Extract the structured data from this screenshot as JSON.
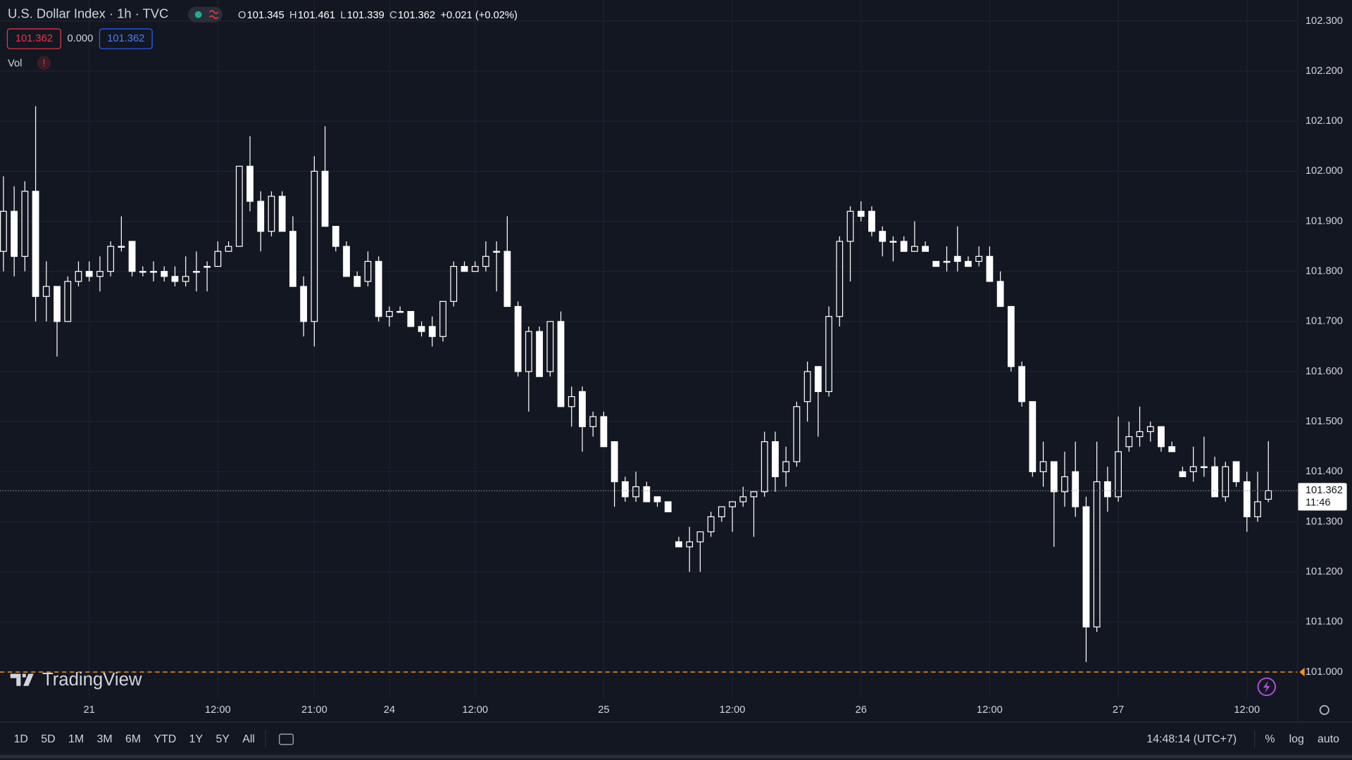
{
  "chart_data": {
    "type": "candlestick",
    "title": "U.S. Dollar Index · 1h · TVC",
    "ohlc_legend": [
      {
        "key": "O",
        "value": "101.345"
      },
      {
        "key": "H",
        "value": "101.461"
      },
      {
        "key": "L",
        "value": "101.339"
      },
      {
        "key": "C",
        "value": "101.362"
      }
    ],
    "change": "+0.021 (+0.02%)",
    "bid": "101.362",
    "spread": "0.000",
    "ask": "101.362",
    "indicator": "Vol",
    "indicator_alert": "!",
    "logo": "TradingView",
    "candle_color": "#ffffff",
    "last_price_label": "101.362",
    "countdown": "11:46",
    "alert_line": {
      "value": 101.0,
      "color": "#f7931a"
    },
    "open": [
      101.84,
      101.92,
      101.83,
      101.96,
      101.75,
      101.77,
      101.7,
      101.78,
      101.8,
      101.79,
      101.8,
      101.85,
      101.86,
      101.8,
      101.8,
      101.8,
      101.79,
      101.78,
      101.8,
      101.81,
      101.81,
      101.84,
      101.85,
      102.01,
      101.94,
      101.88,
      101.95,
      101.88,
      101.77,
      101.7,
      102.0,
      101.89,
      101.85,
      101.79,
      101.78,
      101.82,
      101.71,
      101.72,
      101.72,
      101.69,
      101.69,
      101.67,
      101.74,
      101.81,
      101.8,
      101.81,
      101.84,
      101.84,
      101.73,
      101.6,
      101.68,
      101.6,
      101.7,
      101.53,
      101.56,
      101.49,
      101.51,
      101.46,
      101.38,
      101.35,
      101.37,
      101.35,
      101.34,
      101.26,
      101.25,
      101.26,
      101.28,
      101.31,
      101.33,
      101.34,
      101.35,
      101.36,
      101.46,
      101.4,
      101.42,
      101.54,
      101.61,
      101.56,
      101.71,
      101.86,
      101.92,
      101.92,
      101.88,
      101.86,
      101.86,
      101.84,
      101.85,
      101.82,
      101.82,
      101.83,
      101.82,
      101.82,
      101.83,
      101.78,
      101.73,
      101.61,
      101.54,
      101.4,
      101.42,
      101.36,
      101.4,
      101.33,
      101.09,
      101.38,
      101.35,
      101.45,
      101.47,
      101.48,
      101.49,
      101.45,
      101.4,
      101.4,
      101.41,
      101.41,
      101.35,
      101.42,
      101.38,
      101.31,
      101.345
    ],
    "high": [
      101.99,
      101.97,
      101.98,
      102.13,
      101.82,
      101.77,
      101.79,
      101.82,
      101.82,
      101.83,
      101.86,
      101.91,
      101.86,
      101.81,
      101.82,
      101.81,
      101.81,
      101.83,
      101.84,
      101.82,
      101.86,
      101.86,
      102.01,
      102.07,
      101.96,
      101.96,
      101.96,
      101.91,
      101.79,
      102.03,
      102.09,
      101.89,
      101.86,
      101.8,
      101.84,
      101.83,
      101.73,
      101.73,
      101.72,
      101.7,
      101.71,
      101.74,
      101.82,
      101.82,
      101.82,
      101.86,
      101.86,
      101.91,
      101.74,
      101.69,
      101.69,
      101.7,
      101.72,
      101.57,
      101.57,
      101.52,
      101.52,
      101.46,
      101.39,
      101.4,
      101.38,
      101.35,
      101.34,
      101.27,
      101.29,
      101.28,
      101.32,
      101.33,
      101.34,
      101.37,
      101.36,
      101.48,
      101.48,
      101.45,
      101.54,
      101.62,
      101.61,
      101.73,
      101.87,
      101.93,
      101.94,
      101.93,
      101.89,
      101.87,
      101.87,
      101.9,
      101.86,
      101.82,
      101.85,
      101.89,
      101.83,
      101.85,
      101.85,
      101.8,
      101.73,
      101.62,
      101.54,
      101.46,
      101.42,
      101.44,
      101.46,
      101.35,
      101.46,
      101.41,
      101.51,
      101.5,
      101.53,
      101.5,
      101.49,
      101.46,
      101.41,
      101.45,
      101.47,
      101.43,
      101.42,
      101.42,
      101.4,
      101.4,
      101.461
    ],
    "low": [
      101.8,
      101.79,
      101.8,
      101.7,
      101.7,
      101.63,
      101.7,
      101.77,
      101.78,
      101.76,
      101.79,
      101.84,
      101.79,
      101.79,
      101.78,
      101.78,
      101.77,
      101.77,
      101.76,
      101.76,
      101.81,
      101.84,
      101.85,
      101.92,
      101.84,
      101.87,
      101.88,
      101.77,
      101.67,
      101.65,
      101.89,
      101.84,
      101.79,
      101.77,
      101.77,
      101.7,
      101.69,
      101.72,
      101.69,
      101.67,
      101.65,
      101.66,
      101.73,
      101.8,
      101.8,
      101.8,
      101.76,
      101.73,
      101.59,
      101.52,
      101.59,
      101.59,
      101.53,
      101.49,
      101.44,
      101.47,
      101.45,
      101.33,
      101.34,
      101.34,
      101.34,
      101.33,
      101.32,
      101.25,
      101.2,
      101.2,
      101.27,
      101.3,
      101.28,
      101.33,
      101.27,
      101.35,
      101.36,
      101.37,
      101.41,
      101.5,
      101.47,
      101.55,
      101.69,
      101.78,
      101.9,
      101.87,
      101.83,
      101.82,
      101.84,
      101.84,
      101.84,
      101.81,
      101.8,
      101.8,
      101.81,
      101.81,
      101.78,
      101.73,
      101.6,
      101.53,
      101.39,
      101.37,
      101.25,
      101.33,
      101.31,
      101.02,
      101.08,
      101.32,
      101.34,
      101.44,
      101.45,
      101.46,
      101.44,
      101.44,
      101.39,
      101.38,
      101.39,
      101.35,
      101.34,
      101.37,
      101.28,
      101.3,
      101.339
    ],
    "close": [
      101.92,
      101.83,
      101.96,
      101.75,
      101.77,
      101.7,
      101.78,
      101.8,
      101.79,
      101.8,
      101.85,
      101.85,
      101.8,
      101.8,
      101.8,
      101.79,
      101.78,
      101.79,
      101.8,
      101.81,
      101.84,
      101.85,
      102.01,
      101.94,
      101.88,
      101.95,
      101.88,
      101.77,
      101.7,
      102.0,
      101.89,
      101.85,
      101.79,
      101.77,
      101.82,
      101.71,
      101.72,
      101.72,
      101.69,
      101.68,
      101.67,
      101.74,
      101.81,
      101.8,
      101.81,
      101.83,
      101.84,
      101.73,
      101.6,
      101.68,
      101.59,
      101.7,
      101.53,
      101.55,
      101.49,
      101.51,
      101.45,
      101.38,
      101.35,
      101.37,
      101.34,
      101.34,
      101.32,
      101.25,
      101.26,
      101.28,
      101.31,
      101.33,
      101.34,
      101.35,
      101.36,
      101.46,
      101.39,
      101.42,
      101.53,
      101.6,
      101.56,
      101.71,
      101.86,
      101.92,
      101.91,
      101.88,
      101.86,
      101.86,
      101.84,
      101.85,
      101.84,
      101.81,
      101.82,
      101.82,
      101.81,
      101.83,
      101.78,
      101.73,
      101.61,
      101.54,
      101.4,
      101.42,
      101.36,
      101.39,
      101.33,
      101.09,
      101.38,
      101.35,
      101.44,
      101.47,
      101.48,
      101.49,
      101.45,
      101.44,
      101.39,
      101.41,
      101.41,
      101.35,
      101.41,
      101.38,
      101.31,
      101.34,
      101.362
    ],
    "ylim": [
      100.9,
      102.342
    ],
    "yticks": [
      {
        "value": 102.3,
        "label": "102.300"
      },
      {
        "value": 102.2,
        "label": "102.200"
      },
      {
        "value": 102.1,
        "label": "102.100"
      },
      {
        "value": 102.0,
        "label": "102.000"
      },
      {
        "value": 101.9,
        "label": "101.900"
      },
      {
        "value": 101.8,
        "label": "101.800"
      },
      {
        "value": 101.7,
        "label": "101.700"
      },
      {
        "value": 101.6,
        "label": "101.600"
      },
      {
        "value": 101.5,
        "label": "101.500"
      },
      {
        "value": 101.4,
        "label": "101.400"
      },
      {
        "value": 101.3,
        "label": "101.300"
      },
      {
        "value": 101.2,
        "label": "101.200"
      },
      {
        "value": 101.1,
        "label": "101.100"
      },
      {
        "value": 101.0,
        "label": "101.000"
      }
    ],
    "xticks": [
      {
        "value": 8,
        "label": "21"
      },
      {
        "value": 20,
        "label": "12:00"
      },
      {
        "value": 29,
        "label": "21:00"
      },
      {
        "value": 36,
        "label": "24"
      },
      {
        "value": 44,
        "label": "12:00"
      },
      {
        "value": 56,
        "label": "25"
      },
      {
        "value": 68,
        "label": "12:00"
      },
      {
        "value": 80,
        "label": "26"
      },
      {
        "value": 92,
        "label": "12:00"
      },
      {
        "value": 104,
        "label": "27"
      },
      {
        "value": 116,
        "label": "12:00"
      }
    ],
    "grid": true,
    "ranges": [
      "1D",
      "5D",
      "1M",
      "3M",
      "6M",
      "YTD",
      "1Y",
      "5Y",
      "All"
    ],
    "clock": "14:48:14 (UTC+7)",
    "scale_options": [
      "%",
      "log",
      "auto"
    ]
  }
}
